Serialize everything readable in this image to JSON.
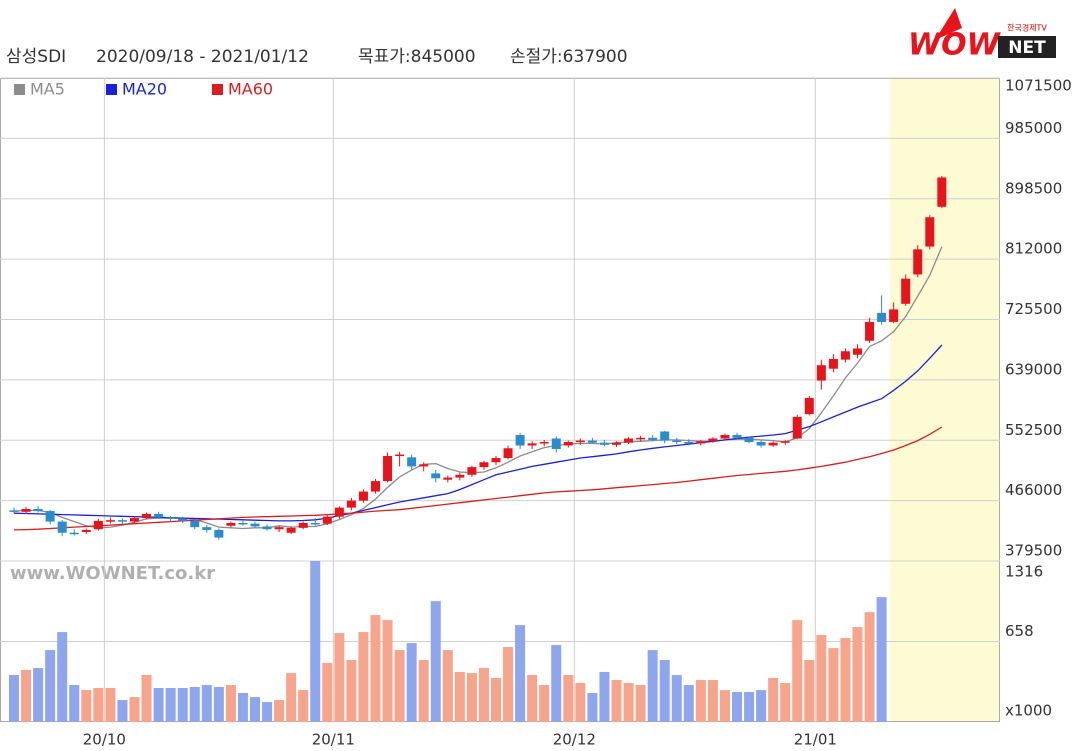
{
  "chart_data": {
    "type": "candlestick",
    "header": {
      "name": "삼성SDI",
      "period": "2020/09/18 - 2021/01/12",
      "target": "목표가:845000",
      "stop": "손절가:637900"
    },
    "logo": {
      "word": "WOW",
      "box": "NET",
      "sub": "한국경제TV"
    },
    "watermark": "www.WOWNET.co.kr",
    "categories": [
      null,
      null,
      null,
      null,
      null,
      null,
      null,
      null,
      "20/10",
      null,
      null,
      null,
      null,
      null,
      null,
      null,
      null,
      null,
      null,
      null,
      null,
      null,
      null,
      null,
      null,
      null,
      null,
      "20/11",
      null,
      null,
      null,
      null,
      null,
      null,
      null,
      null,
      null,
      null,
      null,
      null,
      null,
      null,
      null,
      null,
      null,
      null,
      null,
      "20/12",
      null,
      null,
      null,
      null,
      null,
      null,
      null,
      null,
      null,
      null,
      null,
      null,
      null,
      null,
      null,
      null,
      null,
      null,
      null,
      "21/01",
      null,
      null,
      null,
      null,
      null,
      null,
      null,
      null,
      null,
      null
    ],
    "open": [
      452000,
      450000,
      454000,
      451000,
      436000,
      420000,
      421000,
      425000,
      437000,
      438000,
      436000,
      441000,
      447000,
      442000,
      440000,
      437000,
      428000,
      424000,
      430000,
      434000,
      433000,
      429000,
      425000,
      420000,
      427000,
      434000,
      433000,
      443000,
      456000,
      466000,
      479000,
      494000,
      530000,
      528000,
      515000,
      505000,
      496000,
      499000,
      503000,
      514000,
      521000,
      527000,
      560000,
      545000,
      548000,
      555000,
      545000,
      550000,
      552000,
      549000,
      546000,
      549000,
      555000,
      556000,
      565000,
      552000,
      550000,
      548000,
      551000,
      555000,
      560000,
      556000,
      550000,
      545000,
      549000,
      555000,
      590000,
      638000,
      655000,
      668000,
      675000,
      695000,
      735000,
      722000,
      748000,
      790000,
      830000,
      887000
    ],
    "high": [
      456000,
      457000,
      458000,
      453000,
      438000,
      425000,
      426000,
      440000,
      442000,
      441000,
      444000,
      449000,
      450000,
      444000,
      443000,
      440000,
      431000,
      426000,
      436000,
      437000,
      436000,
      432000,
      430000,
      429000,
      436000,
      441000,
      445000,
      458000,
      470000,
      482000,
      497000,
      535000,
      536000,
      532000,
      521000,
      510000,
      502000,
      506000,
      516000,
      523000,
      530000,
      545000,
      563000,
      551000,
      553000,
      558000,
      552000,
      555000,
      556000,
      553000,
      551000,
      557000,
      559000,
      560000,
      566000,
      556000,
      554000,
      553000,
      557000,
      562000,
      563000,
      558000,
      553000,
      551000,
      553000,
      589000,
      616000,
      668000,
      676000,
      684000,
      690000,
      728000,
      760000,
      750000,
      790000,
      832000,
      875000,
      931000
    ],
    "low": [
      448000,
      447000,
      449000,
      432000,
      415000,
      416000,
      418000,
      423000,
      433000,
      432000,
      434000,
      439000,
      440000,
      436000,
      434000,
      425000,
      420000,
      410000,
      428000,
      430000,
      427000,
      423000,
      421000,
      418000,
      425000,
      430000,
      431000,
      440000,
      452000,
      463000,
      476000,
      492000,
      515000,
      510000,
      508000,
      492000,
      492000,
      495000,
      500000,
      510000,
      517000,
      525000,
      540000,
      540000,
      544000,
      535000,
      542000,
      546000,
      548000,
      544000,
      543000,
      547000,
      551000,
      551000,
      548000,
      547000,
      545000,
      545000,
      549000,
      552000,
      553000,
      548000,
      542000,
      543000,
      546000,
      554000,
      588000,
      625000,
      650000,
      664000,
      670000,
      692000,
      718000,
      720000,
      745000,
      786000,
      826000,
      885000
    ],
    "close": [
      450000,
      454000,
      451000,
      436000,
      420000,
      419000,
      424000,
      437000,
      438000,
      436000,
      441000,
      447000,
      442000,
      440000,
      437000,
      428000,
      424000,
      413000,
      434000,
      433000,
      429000,
      425000,
      428000,
      427000,
      434000,
      433000,
      443000,
      456000,
      466000,
      479000,
      494000,
      530000,
      532000,
      515000,
      518000,
      498000,
      499000,
      503000,
      514000,
      521000,
      527000,
      541000,
      545000,
      548000,
      550000,
      540000,
      550000,
      552000,
      549000,
      546000,
      549000,
      555000,
      556000,
      553000,
      552000,
      550000,
      548000,
      551000,
      555000,
      560000,
      556000,
      550000,
      545000,
      549000,
      551000,
      586000,
      613000,
      660000,
      669000,
      680000,
      684000,
      722000,
      722000,
      740000,
      784000,
      826000,
      872000,
      929000
    ],
    "up_color": "#e8141c",
    "down_color": "#2a8ccc",
    "ma_series": [
      {
        "name": "MA5",
        "color": "#8c8c8c",
        "values": [
          451000,
          452000,
          452000,
          449000,
          442000,
          436000,
          430000,
          427000,
          428000,
          431000,
          435000,
          440000,
          441000,
          441000,
          441000,
          439000,
          434000,
          428000,
          427000,
          426000,
          427000,
          427000,
          430000,
          428000,
          429000,
          429000,
          433000,
          439000,
          446000,
          455000,
          468000,
          485000,
          500000,
          510000,
          518000,
          519000,
          512000,
          507000,
          506000,
          507000,
          513000,
          521000,
          530000,
          536000,
          542000,
          545000,
          547000,
          548000,
          548000,
          547000,
          549000,
          550000,
          551000,
          552000,
          553000,
          553000,
          552000,
          551000,
          551000,
          553000,
          554000,
          554000,
          553000,
          552000,
          550000,
          556000,
          569000,
          592000,
          616000,
          642000,
          663000,
          687000,
          695000,
          708000,
          730000,
          759000,
          789000,
          830000
        ]
      },
      {
        "name": "MA20",
        "color": "#1a22d8",
        "values": [
          448000,
          447500,
          447000,
          446500,
          446000,
          445500,
          445000,
          444500,
          444000,
          443500,
          443000,
          442500,
          442000,
          441500,
          441000,
          440500,
          440000,
          439500,
          439000,
          438500,
          438000,
          437500,
          437000,
          437000,
          437500,
          438500,
          441000,
          444500,
          448000,
          452000,
          456000,
          460000,
          464000,
          467000,
          470000,
          473000,
          476000,
          482000,
          489000,
          496000,
          503000,
          507000,
          511000,
          515000,
          518000,
          521000,
          524000,
          527000,
          529000,
          531000,
          533000,
          536000,
          538500,
          541000,
          543000,
          545000,
          547000,
          549000,
          551000,
          553000,
          555000,
          557000,
          558500,
          560000,
          562000,
          567000,
          572000,
          579000,
          586000,
          593000,
          600000,
          606000,
          612000,
          624000,
          637000,
          652000,
          670000,
          689000
        ]
      },
      {
        "name": "MA60",
        "color": "#d81e1e",
        "values": [
          424000,
          424500,
          425000,
          426000,
          427000,
          428000,
          429000,
          430000,
          431000,
          432000,
          433000,
          434000,
          435000,
          436000,
          437000,
          438000,
          439000,
          440000,
          441000,
          442000,
          442500,
          443000,
          443500,
          444000,
          444500,
          445000,
          446000,
          447000,
          448000,
          449500,
          451000,
          452000,
          453000,
          455000,
          457000,
          459000,
          461000,
          463000,
          465000,
          467000,
          469000,
          471000,
          473000,
          475000,
          477000,
          478500,
          479500,
          480500,
          481500,
          483000,
          484500,
          486000,
          487500,
          489000,
          490500,
          492000,
          494000,
          496000,
          498000,
          500000,
          502000,
          503500,
          505000,
          506500,
          508000,
          510000,
          512500,
          515000,
          518000,
          521000,
          525000,
          529000,
          533500,
          538500,
          545000,
          552000,
          561000,
          571500
        ]
      }
    ],
    "ylim": [
      379500,
      1071500
    ],
    "yticks": [
      379500,
      466000,
      552500,
      639000,
      725500,
      812000,
      898500,
      985000,
      1071500
    ],
    "grid": true,
    "volume": {
      "values": [
        384,
        425,
        441,
        588,
        735,
        302,
        261,
        278,
        278,
        180,
        204,
        384,
        278,
        278,
        278,
        286,
        302,
        286,
        302,
        237,
        204,
        163,
        180,
        400,
        261,
        1316,
        482,
        727,
        507,
        735,
        874,
        833,
        588,
        645,
        507,
        988,
        588,
        409,
        400,
        441,
        360,
        613,
        792,
        384,
        302,
        629,
        384,
        319,
        237,
        409,
        343,
        319,
        302,
        588,
        507,
        384,
        302,
        343,
        343,
        261,
        245,
        245,
        261,
        360,
        319,
        833,
        507,
        711,
        604,
        686,
        776,
        898,
        1021,
        null,
        null,
        null,
        null,
        null
      ],
      "up_color": "#f6a48c",
      "down_color": "#8ea6ee",
      "ylim": [
        0,
        1316
      ],
      "yticks": [
        658,
        1316
      ],
      "unit": "x1000"
    }
  }
}
